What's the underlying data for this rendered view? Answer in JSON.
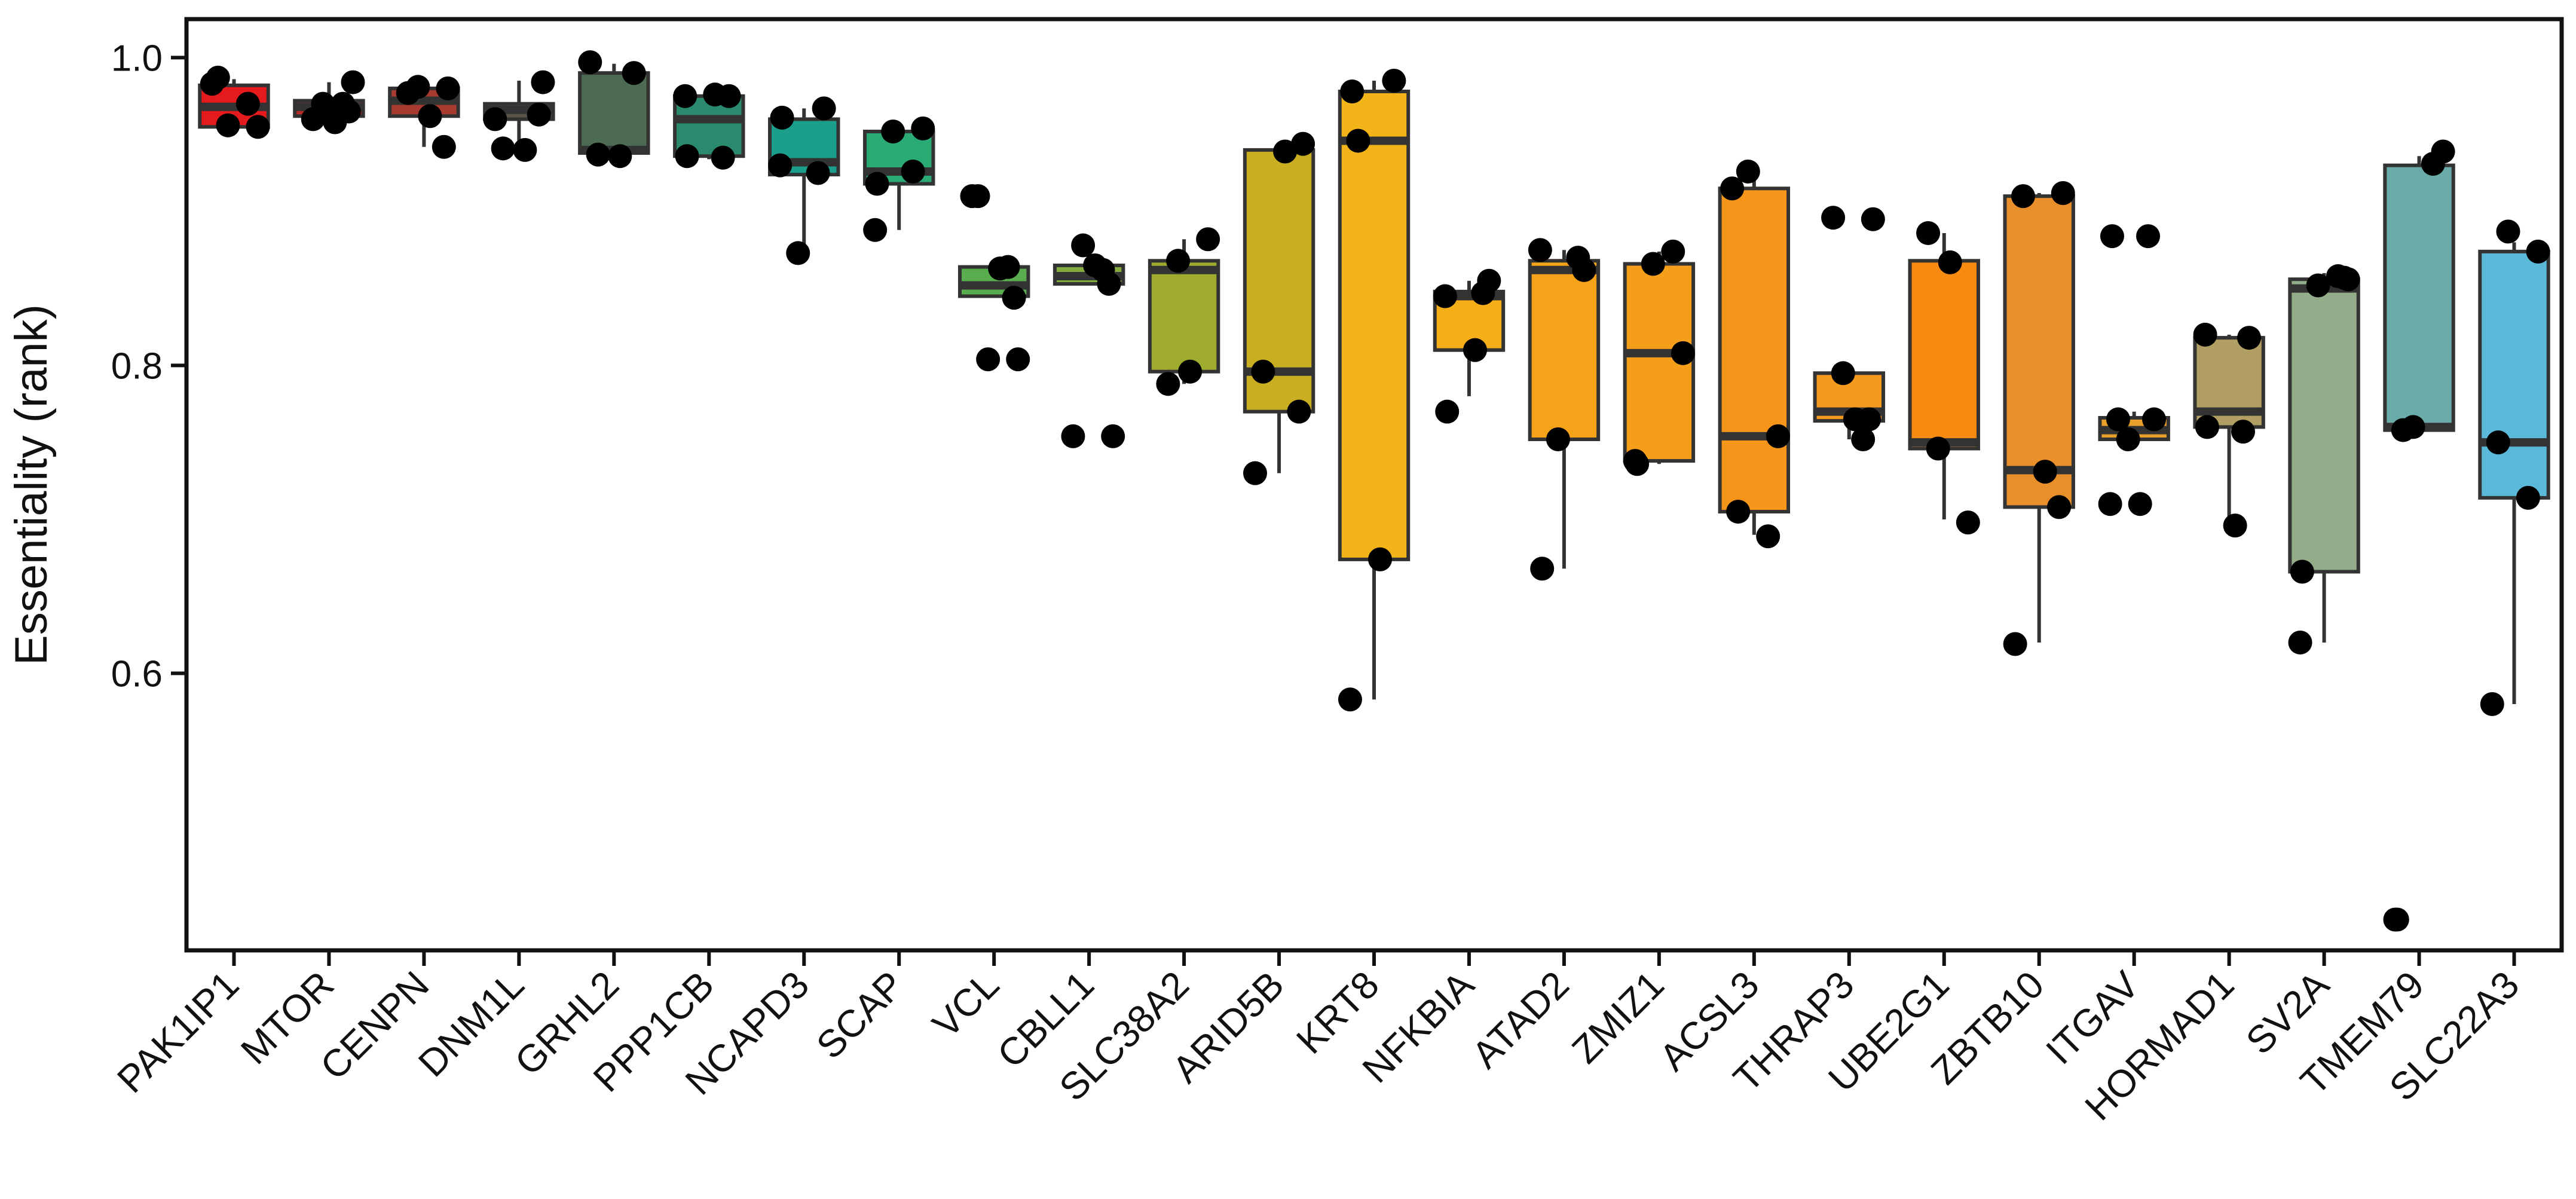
{
  "chart_data": {
    "type": "box",
    "title": "",
    "xlabel": "",
    "ylabel": "Essentiality (rank)",
    "ylim": [
      0.42,
      1.025
    ],
    "yticks": [
      1.0,
      0.8,
      0.6
    ],
    "ytick_labels": [
      "1.0",
      "0.8",
      "0.6"
    ],
    "grid": false,
    "legend": "none",
    "categories": [
      "PAK1IP1",
      "MTOR",
      "CENPN",
      "DNM1L",
      "GRHL2",
      "PPP1CB",
      "NCAPD3",
      "SCAP",
      "VCL",
      "CBLL1",
      "SLC38A2",
      "ARID5B",
      "KRT8",
      "NFKBIA",
      "ATAD2",
      "ZMIZ1",
      "ACSL3",
      "THRAP3",
      "UBE2G1",
      "ZBTB10",
      "ITGAV",
      "HORMAD1",
      "SV2A",
      "TMEM79",
      "SLC22A3"
    ],
    "boxes": [
      {
        "name": "PAK1IP1",
        "color": "#e41a1c",
        "q1": 0.955,
        "median": 0.968,
        "q3": 0.982,
        "whisker_low": 0.955,
        "whisker_high": 0.986,
        "points": [
          0.983,
          0.97,
          0.956,
          0.955,
          0.987
        ]
      },
      {
        "name": "MTOR",
        "color": "#b82a26",
        "q1": 0.962,
        "median": 0.968,
        "q3": 0.972,
        "whisker_low": 0.958,
        "whisker_high": 0.984,
        "points": [
          0.97,
          0.97,
          0.984,
          0.96,
          0.958,
          0.965
        ]
      },
      {
        "name": "CENPN",
        "color": "#a83a30",
        "q1": 0.962,
        "median": 0.972,
        "q3": 0.98,
        "whisker_low": 0.942,
        "whisker_high": 0.982,
        "points": [
          0.981,
          0.98,
          0.977,
          0.962,
          0.942
        ]
      },
      {
        "name": "DNM1L",
        "color": "#5b5448",
        "q1": 0.96,
        "median": 0.966,
        "q3": 0.97,
        "whisker_low": 0.94,
        "whisker_high": 0.985,
        "points": [
          0.984,
          0.941,
          0.94,
          0.963,
          0.96
        ]
      },
      {
        "name": "GRHL2",
        "color": "#4d6b52",
        "q1": 0.938,
        "median": 0.94,
        "q3": 0.99,
        "whisker_low": 0.936,
        "whisker_high": 0.996,
        "points": [
          0.937,
          0.936,
          0.99,
          0.997
        ]
      },
      {
        "name": "PPP1CB",
        "color": "#2a8a6e",
        "q1": 0.936,
        "median": 0.96,
        "q3": 0.975,
        "whisker_low": 0.934,
        "whisker_high": 0.976,
        "points": [
          0.976,
          0.975,
          0.975,
          0.936,
          0.935
        ]
      },
      {
        "name": "NCAPD3",
        "color": "#1b9e8a",
        "q1": 0.924,
        "median": 0.932,
        "q3": 0.96,
        "whisker_low": 0.872,
        "whisker_high": 0.967,
        "points": [
          0.967,
          0.93,
          0.961,
          0.925,
          0.873
        ]
      },
      {
        "name": "SCAP",
        "color": "#2aab76",
        "q1": 0.918,
        "median": 0.926,
        "q3": 0.952,
        "whisker_low": 0.888,
        "whisker_high": 0.954,
        "points": [
          0.888,
          0.918,
          0.926,
          0.952,
          0.954
        ]
      },
      {
        "name": "VCL",
        "color": "#5aad4e",
        "q1": 0.845,
        "median": 0.852,
        "q3": 0.864,
        "whisker_low": 0.845,
        "whisker_high": 0.866,
        "points": [
          0.91,
          0.864,
          0.804,
          0.804,
          0.91,
          0.863,
          0.844
        ]
      },
      {
        "name": "CBLL1",
        "color": "#86ac3e",
        "q1": 0.853,
        "median": 0.858,
        "q3": 0.865,
        "whisker_low": 0.853,
        "whisker_high": 0.88,
        "points": [
          0.862,
          0.878,
          0.754,
          0.754,
          0.865,
          0.853
        ]
      },
      {
        "name": "SLC38A2",
        "color": "#9eab2e",
        "q1": 0.796,
        "median": 0.862,
        "q3": 0.868,
        "whisker_low": 0.788,
        "whisker_high": 0.882,
        "points": [
          0.868,
          0.882,
          0.788,
          0.796
        ]
      },
      {
        "name": "ARID5B",
        "color": "#c8ae20",
        "q1": 0.77,
        "median": 0.796,
        "q3": 0.94,
        "whisker_low": 0.73,
        "whisker_high": 0.944,
        "points": [
          0.944,
          0.796,
          0.939,
          0.77,
          0.73
        ]
      },
      {
        "name": "KRT8",
        "color": "#f2b418",
        "q1": 0.674,
        "median": 0.946,
        "q3": 0.978,
        "whisker_low": 0.583,
        "whisker_high": 0.985,
        "points": [
          0.946,
          0.674,
          0.985,
          0.583,
          0.978
        ]
      },
      {
        "name": "NFKBIA",
        "color": "#f5ae18",
        "q1": 0.81,
        "median": 0.845,
        "q3": 0.848,
        "whisker_low": 0.78,
        "whisker_high": 0.855,
        "points": [
          0.81,
          0.855,
          0.845,
          0.77,
          0.847
        ]
      },
      {
        "name": "ATAD2",
        "color": "#f5a41a",
        "q1": 0.752,
        "median": 0.862,
        "q3": 0.868,
        "whisker_low": 0.668,
        "whisker_high": 0.875,
        "points": [
          0.862,
          0.875,
          0.668,
          0.87,
          0.752
        ]
      },
      {
        "name": "ZMIZ1",
        "color": "#f59e1a",
        "q1": 0.738,
        "median": 0.808,
        "q3": 0.866,
        "whisker_low": 0.736,
        "whisker_high": 0.874,
        "points": [
          0.738,
          0.736,
          0.874,
          0.866,
          0.808
        ]
      },
      {
        "name": "ACSL3",
        "color": "#f5951a",
        "q1": 0.705,
        "median": 0.754,
        "q3": 0.915,
        "whisker_low": 0.69,
        "whisker_high": 0.926,
        "points": [
          0.915,
          0.689,
          0.926,
          0.754,
          0.705
        ]
      },
      {
        "name": "THRAP3",
        "color": "#f59a1c",
        "q1": 0.764,
        "median": 0.77,
        "q3": 0.795,
        "whisker_low": 0.752,
        "whisker_high": 0.795,
        "points": [
          0.752,
          0.795,
          0.895,
          0.896,
          0.765,
          0.765
        ]
      },
      {
        "name": "UBE2G1",
        "color": "#f78a10",
        "q1": 0.746,
        "median": 0.75,
        "q3": 0.868,
        "whisker_low": 0.7,
        "whisker_high": 0.886,
        "points": [
          0.746,
          0.698,
          0.886,
          0.867
        ]
      },
      {
        "name": "ZBTB10",
        "color": "#e88e2a",
        "q1": 0.708,
        "median": 0.732,
        "q3": 0.91,
        "whisker_low": 0.62,
        "whisker_high": 0.912,
        "points": [
          0.912,
          0.91,
          0.731,
          0.708,
          0.619
        ]
      },
      {
        "name": "ITGAV",
        "color": "#e8a02a",
        "q1": 0.752,
        "median": 0.758,
        "q3": 0.766,
        "whisker_low": 0.752,
        "whisker_high": 0.77,
        "points": [
          0.765,
          0.71,
          0.765,
          0.71,
          0.884,
          0.884,
          0.752
        ]
      },
      {
        "name": "HORMAD1",
        "color": "#b09e62",
        "q1": 0.76,
        "median": 0.77,
        "q3": 0.818,
        "whisker_low": 0.695,
        "whisker_high": 0.82,
        "points": [
          0.696,
          0.818,
          0.82,
          0.76,
          0.757
        ]
      },
      {
        "name": "SV2A",
        "color": "#93ad8a",
        "q1": 0.666,
        "median": 0.85,
        "q3": 0.856,
        "whisker_low": 0.62,
        "whisker_high": 0.86,
        "points": [
          0.857,
          0.62,
          0.666,
          0.858,
          0.852,
          0.856
        ]
      },
      {
        "name": "TMEM79",
        "color": "#6aabaa",
        "q1": 0.758,
        "median": 0.76,
        "q3": 0.93,
        "whisker_low": 0.758,
        "whisker_high": 0.936,
        "points": [
          0.44,
          0.44,
          0.931,
          0.76,
          0.939,
          0.758
        ]
      },
      {
        "name": "SLC22A3",
        "color": "#5ab8d8",
        "q1": 0.714,
        "median": 0.75,
        "q3": 0.874,
        "whisker_low": 0.58,
        "whisker_high": 0.88,
        "points": [
          0.58,
          0.714,
          0.887,
          0.874,
          0.75
        ]
      }
    ]
  }
}
